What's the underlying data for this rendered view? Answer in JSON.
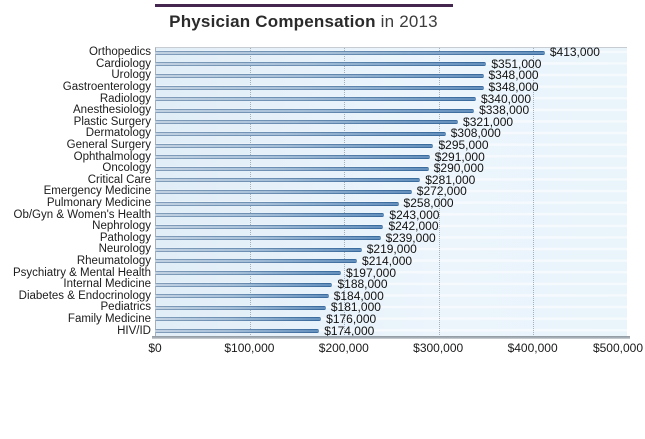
{
  "title": {
    "bold_part": "Physician Compensation",
    "regular_part": " in 2013"
  },
  "colors": {
    "title_rule": "#45264f",
    "bar_dark": "#3e79b6",
    "bar_light": "#d6e4f2",
    "plot_bg": "#e9f3fb",
    "gridline": "#a3b1bd",
    "axis": "#8e979e"
  },
  "chart_data": {
    "type": "bar",
    "orientation": "horizontal",
    "title": "Physician Compensation in 2013",
    "xlabel": "",
    "ylabel": "",
    "xlim": [
      0,
      500000
    ],
    "grid": "vertical-dotted",
    "legend": "none",
    "categories": [
      "Orthopedics",
      "Cardiology",
      "Urology",
      "Gastroenterology",
      "Radiology",
      "Anesthesiology",
      "Plastic Surgery",
      "Dermatology",
      "General Surgery",
      "Ophthalmology",
      "Oncology",
      "Critical Care",
      "Emergency Medicine",
      "Pulmonary Medicine",
      "Ob/Gyn & Women's Health",
      "Nephrology",
      "Pathology",
      "Neurology",
      "Rheumatology",
      "Psychiatry & Mental Health",
      "Internal Medicine",
      "Diabetes & Endocrinology",
      "Pediatrics",
      "Family Medicine",
      "HIV/ID"
    ],
    "values": [
      413000,
      351000,
      348000,
      348000,
      340000,
      338000,
      321000,
      308000,
      295000,
      291000,
      290000,
      281000,
      272000,
      258000,
      243000,
      242000,
      239000,
      219000,
      214000,
      197000,
      188000,
      184000,
      181000,
      176000,
      174000
    ],
    "value_labels": [
      "$413,000",
      "$351,000",
      "$348,000",
      "$348,000",
      "$340,000",
      "$338,000",
      "$321,000",
      "$308,000",
      "$295,000",
      "$291,000",
      "$290,000",
      "$281,000",
      "$272,000",
      "$258,000",
      "$243,000",
      "$242,000",
      "$239,000",
      "$219,000",
      "$214,000",
      "$197,000",
      "$188,000",
      "$184,000",
      "$181,000",
      "$176,000",
      "$174,000"
    ],
    "x_ticks": [
      "$0",
      "$100,000",
      "$200,000",
      "$300,000",
      "$400,000",
      "$500,000"
    ],
    "x_tick_values": [
      0,
      100000,
      200000,
      300000,
      400000,
      500000
    ]
  }
}
